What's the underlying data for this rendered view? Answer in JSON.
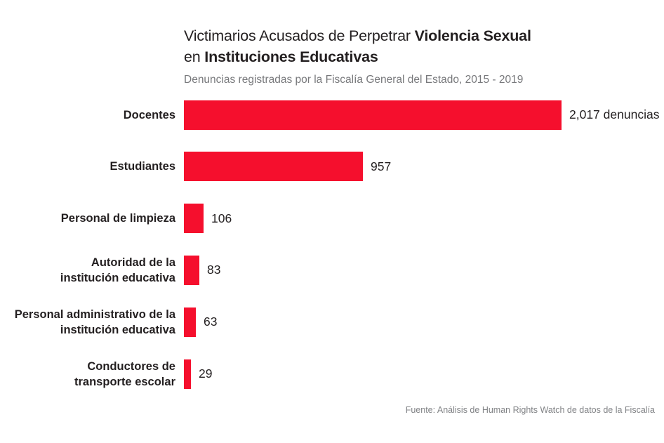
{
  "header": {
    "title_parts": {
      "l1_regular": "Victimarios Acusados de Perpetrar ",
      "l1_bold": "Violencia Sexual",
      "l2_regular": "en ",
      "l2_bold": "Instituciones Educativas"
    },
    "subtitle": "Denuncias registradas por la Fiscalía General del Estado, 2015 - 2019"
  },
  "footer": {
    "source": "Fuente: Análisis de Human Rights Watch de datos de la Fiscalía"
  },
  "colors": {
    "bar_red": "#f50f2d",
    "text_dark": "#231f20",
    "text_gray": "#77787b",
    "source_gray": "#808285"
  },
  "chart_data": {
    "type": "bar",
    "orientation": "horizontal",
    "title": "Victimarios Acusados de Perpetrar Violencia Sexual en Instituciones Educativas",
    "subtitle": "Denuncias registradas por la Fiscalía General del Estado, 2015 - 2019",
    "categories": [
      "Docentes",
      "Estudiantes",
      "Personal de limpieza",
      "Autoridad de la institución educativa",
      "Personal administrativo de la institución educativa",
      "Conductores de transporte escolar"
    ],
    "label_lines": [
      [
        "Docentes"
      ],
      [
        "Estudiantes"
      ],
      [
        "Personal de limpieza"
      ],
      [
        "Autoridad de la",
        "institución educativa"
      ],
      [
        "Personal administrativo de la",
        "institución educativa"
      ],
      [
        "Conductores de",
        "transporte escolar"
      ]
    ],
    "values": [
      2017,
      957,
      106,
      83,
      63,
      29
    ],
    "value_labels": [
      "2,017 denuncias",
      "957",
      "106",
      "83",
      "63",
      "29"
    ],
    "bar_color": "#f50f2d",
    "xlim": [
      0,
      2017
    ],
    "grid": false,
    "legend": false,
    "source": "Fuente: Análisis de Human Rights Watch de datos de la Fiscalía"
  }
}
